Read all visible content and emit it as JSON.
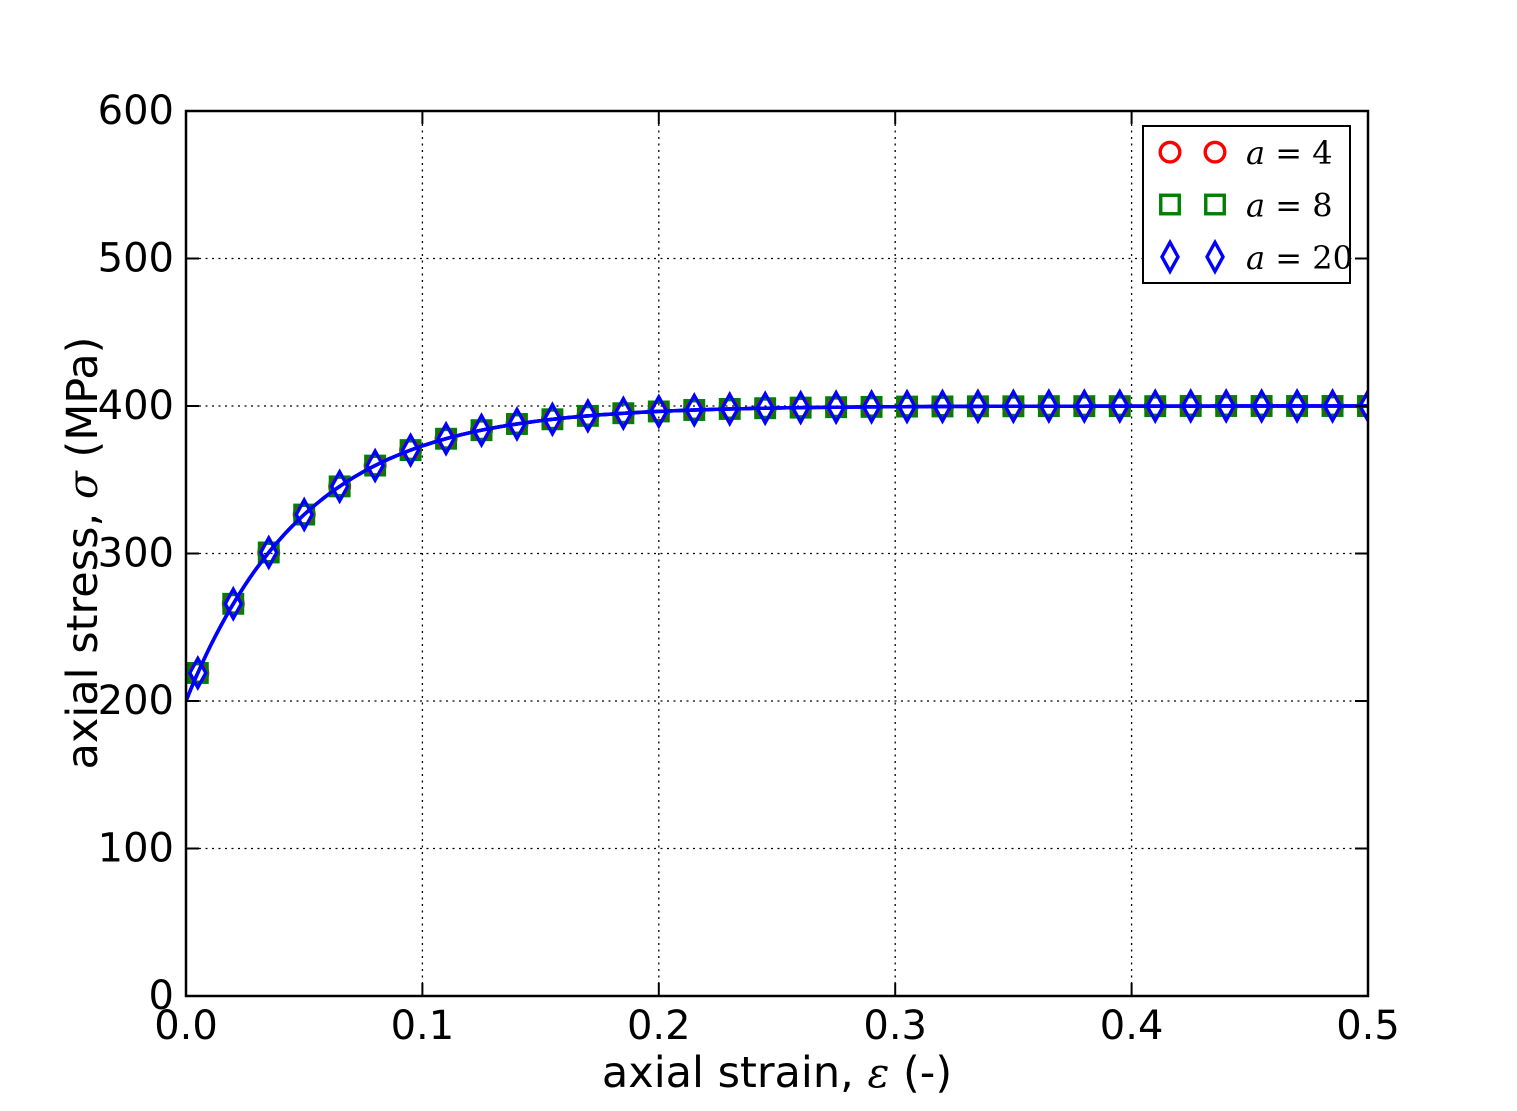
{
  "chart_data": {
    "type": "line",
    "title": "",
    "xlabel": {
      "prefix": "axial strain,",
      "symbol": "ε",
      "suffix": "(-)"
    },
    "ylabel": {
      "prefix": "axial stress,",
      "symbol": "σ",
      "suffix": "(MPa)"
    },
    "xlim": [
      0,
      0.5
    ],
    "ylim": [
      0,
      600
    ],
    "xticks": {
      "values": [
        0,
        0.1,
        0.2,
        0.3,
        0.4,
        0.5
      ],
      "labels": [
        "0.0",
        "0.1",
        "0.2",
        "0.3",
        "0.4",
        "0.5"
      ]
    },
    "yticks": {
      "values": [
        0,
        100,
        200,
        300,
        400,
        500,
        600
      ],
      "labels": [
        "0",
        "100",
        "200",
        "300",
        "400",
        "500",
        "600"
      ]
    },
    "grid": {
      "on": true,
      "style": "dotted",
      "color": "#000000"
    },
    "line": {
      "color": "#0000ff",
      "formula": "sigma = 400 - 200*exp(-20*epsilon)",
      "y_start": 200,
      "y_asymptote": 400,
      "decay_rate": 20
    },
    "x": [
      0.005,
      0.02,
      0.035,
      0.05,
      0.065,
      0.08,
      0.095,
      0.11,
      0.125,
      0.14,
      0.155,
      0.17,
      0.185,
      0.2,
      0.215,
      0.23,
      0.245,
      0.26,
      0.275,
      0.29,
      0.305,
      0.32,
      0.335,
      0.35,
      0.365,
      0.38,
      0.395,
      0.41,
      0.425,
      0.44,
      0.455,
      0.47,
      0.485,
      0.5
    ],
    "series": [
      {
        "label": "a = 4",
        "label_var": "a",
        "label_value": "4",
        "marker": "circle",
        "color": "#ff0000",
        "values": [
          219.0,
          265.9,
          300.7,
          326.4,
          345.5,
          359.6,
          370.1,
          377.8,
          383.6,
          387.8,
          391.0,
          393.3,
          395.1,
          396.3,
          397.3,
          398.0,
          398.5,
          398.9,
          399.2,
          399.4,
          399.6,
          399.7,
          399.8,
          399.8,
          399.9,
          399.9,
          399.9,
          399.9,
          400.0,
          400.0,
          400.0,
          400.0,
          400.0,
          400.0
        ]
      },
      {
        "label": "a = 8",
        "label_var": "a",
        "label_value": "8",
        "marker": "square",
        "color": "#008000",
        "values": [
          219.0,
          265.9,
          300.7,
          326.4,
          345.5,
          359.6,
          370.1,
          377.8,
          383.6,
          387.8,
          391.0,
          393.3,
          395.1,
          396.3,
          397.3,
          398.0,
          398.5,
          398.9,
          399.2,
          399.4,
          399.6,
          399.7,
          399.8,
          399.8,
          399.9,
          399.9,
          399.9,
          399.9,
          400.0,
          400.0,
          400.0,
          400.0,
          400.0,
          400.0
        ]
      },
      {
        "label": "a = 20",
        "label_var": "a",
        "label_value": "20",
        "marker": "diamond",
        "color": "#0000ff",
        "values": [
          219.0,
          265.9,
          300.7,
          326.4,
          345.5,
          359.6,
          370.1,
          377.8,
          383.6,
          387.8,
          391.0,
          393.3,
          395.1,
          396.3,
          397.3,
          398.0,
          398.5,
          398.9,
          399.2,
          399.4,
          399.6,
          399.7,
          399.8,
          399.8,
          399.9,
          399.9,
          399.9,
          399.9,
          400.0,
          400.0,
          400.0,
          400.0,
          400.0,
          400.0
        ]
      }
    ],
    "legend": {
      "position": "upper right",
      "numpoints": 2,
      "entries": [
        {
          "var": "a",
          "value": "4",
          "label": "a = 4",
          "marker": "circle",
          "color": "#ff0000"
        },
        {
          "var": "a",
          "value": "8",
          "label": "a = 8",
          "marker": "square",
          "color": "#008000"
        },
        {
          "var": "a",
          "value": "20",
          "label": "a = 20",
          "marker": "diamond",
          "color": "#0000ff"
        }
      ]
    }
  }
}
